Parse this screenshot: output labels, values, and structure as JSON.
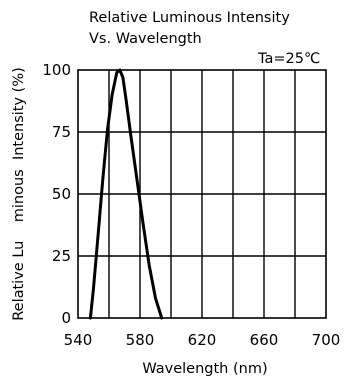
{
  "chart_data": {
    "type": "line",
    "title_line1": "Relative Luminous Intensity",
    "title_line2": "Vs. Wavelength",
    "annotation": "Ta=25℃",
    "xlabel": "Wavelength (nm)",
    "ylabel": "Relative Lu    minous  Intensity (%)",
    "xlim": [
      540,
      700
    ],
    "ylim": [
      0,
      100
    ],
    "x_ticks": [
      540,
      580,
      620,
      660,
      700
    ],
    "x_tick_labels": [
      "540",
      "580",
      "620",
      "660",
      "700"
    ],
    "y_ticks": [
      0,
      25,
      50,
      75,
      100
    ],
    "y_tick_labels": [
      "0",
      "25",
      "50",
      "75",
      "100"
    ],
    "x_gridlines": [
      560,
      580,
      600,
      620,
      640,
      660,
      680
    ],
    "y_gridlines": [
      25,
      50,
      75
    ],
    "grid": true,
    "series": [
      {
        "x": [
          548,
          550,
          553,
          556,
          559,
          562,
          565,
          567,
          569,
          571,
          574,
          578,
          582,
          586,
          590,
          594
        ],
        "y": [
          0,
          12,
          34,
          56,
          76,
          90,
          99,
          100,
          97,
          88,
          74,
          56,
          38,
          21,
          8,
          0
        ]
      }
    ]
  }
}
